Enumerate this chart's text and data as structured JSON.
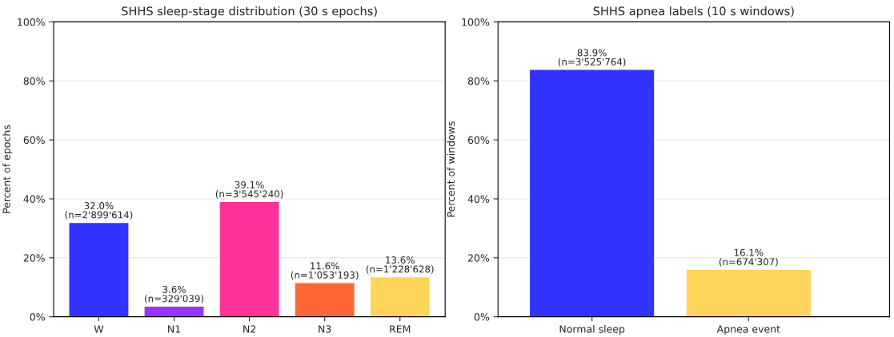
{
  "chart_data": [
    {
      "type": "bar",
      "title": "SHHS sleep-stage distribution (30 s epochs)",
      "ylabel": "Percent of epochs",
      "categories": [
        "W",
        "N1",
        "N2",
        "N3",
        "REM"
      ],
      "values": [
        32.0,
        3.6,
        39.1,
        11.6,
        13.6
      ],
      "colors": [
        "#3333ff",
        "#9933ff",
        "#ff3399",
        "#ff6633",
        "#ffd45a"
      ],
      "value_labels": [
        "32.0%\n(n=2'899'614)",
        "3.6%\n(n=329'039)",
        "39.1%\n(n=3'545'240)",
        "11.6%\n(n=1'053'193)",
        "13.6%\n(n=1'228'628)"
      ],
      "ylim": [
        0,
        100
      ],
      "yticks": [
        {
          "value": 0,
          "label": "0%"
        },
        {
          "value": 20,
          "label": "20%"
        },
        {
          "value": 40,
          "label": "40%"
        },
        {
          "value": 60,
          "label": "60%"
        },
        {
          "value": 80,
          "label": "80%"
        },
        {
          "value": 100,
          "label": "100%"
        }
      ],
      "grid": "y"
    },
    {
      "type": "bar",
      "title": "SHHS apnea labels (10 s windows)",
      "ylabel": "Percent of windows",
      "categories": [
        "Normal sleep",
        "Apnea event"
      ],
      "values": [
        83.9,
        16.1
      ],
      "colors": [
        "#3333ff",
        "#ffd45a"
      ],
      "value_labels": [
        "83.9%\n(n=3'525'764)",
        "16.1%\n(n=674'307)"
      ],
      "ylim": [
        0,
        100
      ],
      "yticks": [
        {
          "value": 0,
          "label": "0%"
        },
        {
          "value": 20,
          "label": "20%"
        },
        {
          "value": 40,
          "label": "40%"
        },
        {
          "value": 60,
          "label": "60%"
        },
        {
          "value": 80,
          "label": "80%"
        },
        {
          "value": 100,
          "label": "100%"
        }
      ],
      "grid": "y"
    }
  ]
}
